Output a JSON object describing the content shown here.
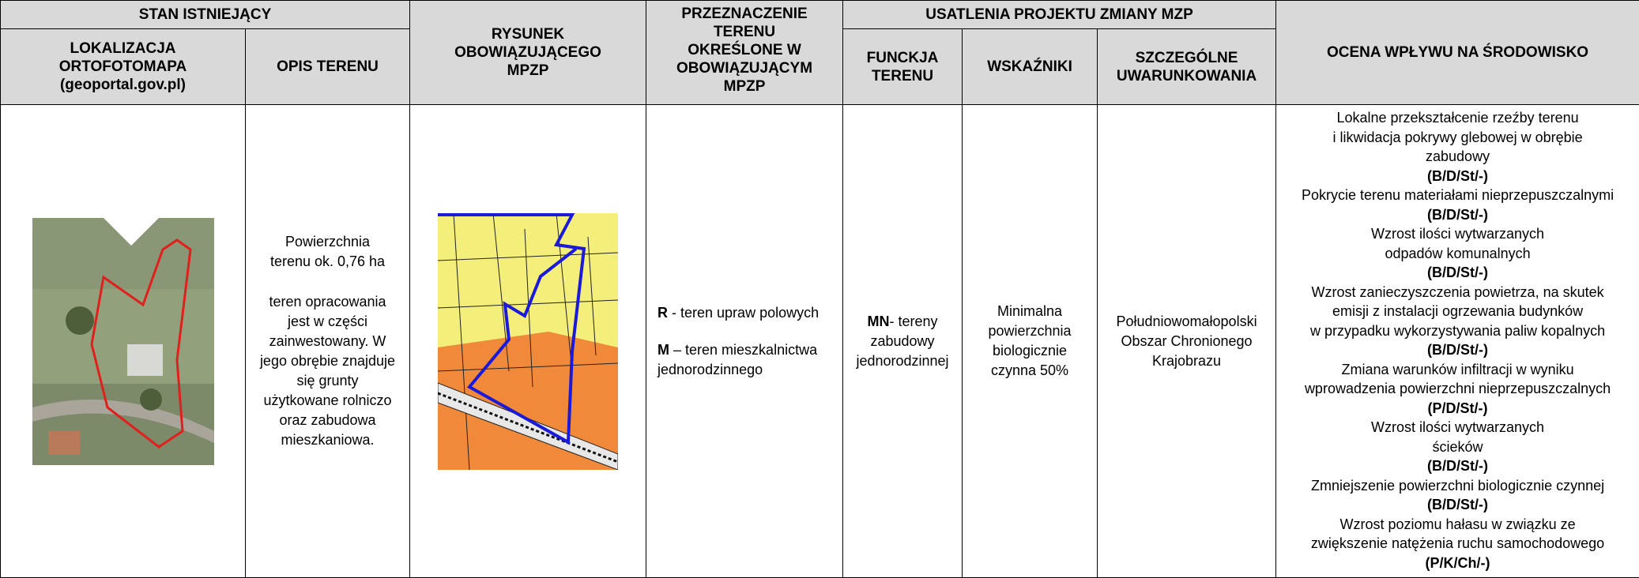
{
  "header": {
    "existing_state": "STAN ISTNIEJĄCY",
    "location": [
      "LOKALIZACJA",
      "ORTOFOTOMAPA",
      "(geoportal.gov.pl)"
    ],
    "description": "OPIS TERENU",
    "plan_drawing": [
      "RYSUNEK",
      "OBOWIĄZUJĄCEGO",
      "MPZP"
    ],
    "purpose": [
      "PRZEZNACZENIE",
      "TERENU",
      "OKREŚLONE W",
      "OBOWIĄZUJĄCYM",
      "MPZP"
    ],
    "project_settings": "USATLENIA PROJEKTU ZMIANY MZP",
    "function": [
      "FUNCKJA",
      "TERENU"
    ],
    "indicators": "WSKAŹNIKI",
    "conditions": [
      "SZCZEGÓLNE",
      "UWARUNKOWANIA"
    ],
    "impact": "OCENA WPŁYWU NA ŚRODOWISKO"
  },
  "row": {
    "description": [
      [
        "Powierzchnia",
        "terenu ok. 0,76 ha"
      ],
      [
        "teren opracowania",
        "jest w części",
        "zainwestowany. W",
        "jego obrębie znajduje",
        "się grunty",
        "użytkowane rolniczo",
        "oraz zabudowa",
        "mieszkaniowa."
      ]
    ],
    "purpose": [
      {
        "code": "R",
        "lines": [
          "- teren upraw polowych"
        ]
      },
      {
        "code": "M",
        "lines": [
          "– teren mieszkalnictwa",
          "jednorodzinnego"
        ]
      }
    ],
    "function": {
      "code": "MN",
      "lines": [
        "- tereny",
        "zabudowy",
        "jednorodzinnej"
      ]
    },
    "indicators": [
      "Minimalna",
      "powierzchnia",
      "biologicznie",
      "czynna 50%"
    ],
    "conditions": [
      "Południowomałopolski",
      "Obszar Chronionego",
      "Krajobrazu"
    ],
    "impact": [
      {
        "lines": [
          "Lokalne przekształcenie rzeźby terenu",
          "i likwidacja pokrywy glebowej w obrębie",
          "zabudowy"
        ],
        "code": "(B/D/St/-)"
      },
      {
        "lines": [
          "Pokrycie terenu materiałami nieprzepuszczalnymi"
        ],
        "code": "(B/D/St/-)"
      },
      {
        "lines": [
          "Wzrost ilości wytwarzanych",
          "odpadów komunalnych"
        ],
        "code": "(B/D/St/-)"
      },
      {
        "lines": [
          "Wzrost zanieczyszczenia powietrza, na skutek",
          "emisji z instalacji ogrzewania budynków",
          "w przypadku wykorzystywania paliw kopalnych"
        ],
        "code": "(B/D/St/-)"
      },
      {
        "lines": [
          "Zmiana warunków infiltracji w wyniku",
          "wprowadzenia powierzchni nieprzepuszczalnych"
        ],
        "code": "(P/D/St/-)"
      },
      {
        "lines": [
          "Wzrost ilości wytwarzanych",
          "ścieków"
        ],
        "code": "(B/D/St/-)"
      },
      {
        "lines": [
          "Zmniejszenie powierzchni biologicznie czynnej"
        ],
        "code": "(B/D/St/-)"
      },
      {
        "lines": [
          "Wzrost poziomu hałasu w związku ze",
          "zwiększenie natężenia ruchu samochodowego"
        ],
        "code": "(P/K/Ch/-)"
      }
    ]
  }
}
